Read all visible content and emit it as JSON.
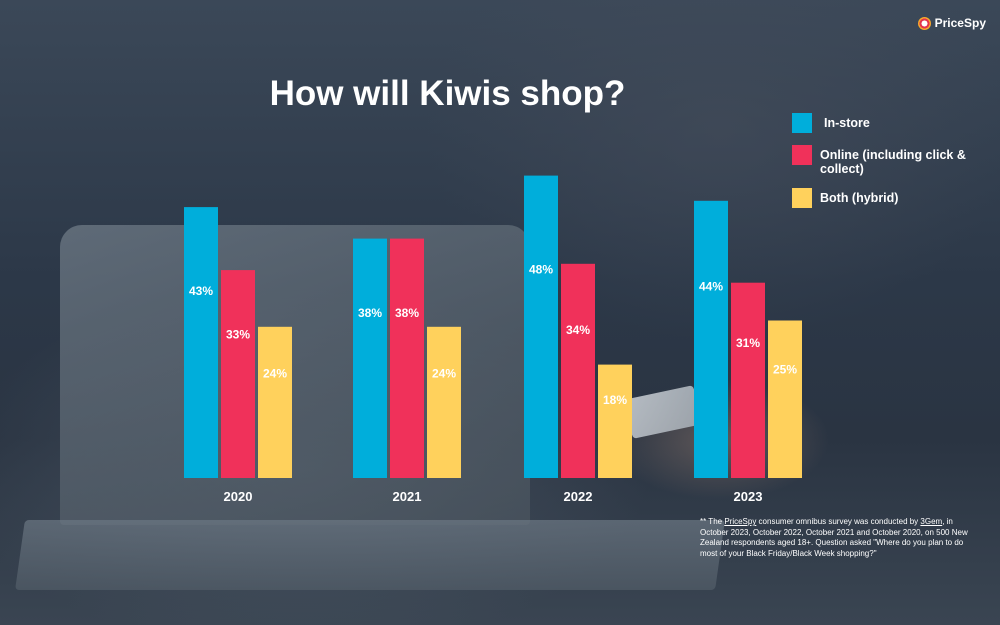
{
  "brand": {
    "name": "PriceSpy"
  },
  "colors": {
    "in_store": "#00aedb",
    "online": "#f0315a",
    "both": "#ffd15c"
  },
  "chart_data": {
    "type": "bar",
    "title": "How will Kiwis shop?",
    "categories": [
      "2020",
      "2021",
      "2022",
      "2023"
    ],
    "series": [
      {
        "name": "In-store",
        "values": [
          43,
          38,
          48,
          44
        ],
        "labels": [
          "43%",
          "38%",
          "48%",
          "44%"
        ]
      },
      {
        "name": "Online (including click & collect)",
        "values": [
          33,
          38,
          34,
          31
        ],
        "labels": [
          "33%",
          "38%",
          "34%",
          "31%"
        ]
      },
      {
        "name": "Both (hybrid)",
        "values": [
          24,
          24,
          18,
          25
        ],
        "labels": [
          "24%",
          "24%",
          "18%",
          "25%"
        ]
      }
    ],
    "ylim": [
      0,
      52
    ],
    "legend_position": "top-right",
    "grid": false
  },
  "footnote": {
    "prefix": "** The ",
    "brand_link": "PriceSpy",
    "mid": " consumer omnibus survey was conducted by ",
    "agency_link": "3Gem",
    "rest": ", in October 2023, October 2022, October 2021 and October 2020, on 500 New Zealand respondents aged 18+.   Question asked \"Where do you plan to do most of your Black Friday/Black Week shopping?\""
  }
}
